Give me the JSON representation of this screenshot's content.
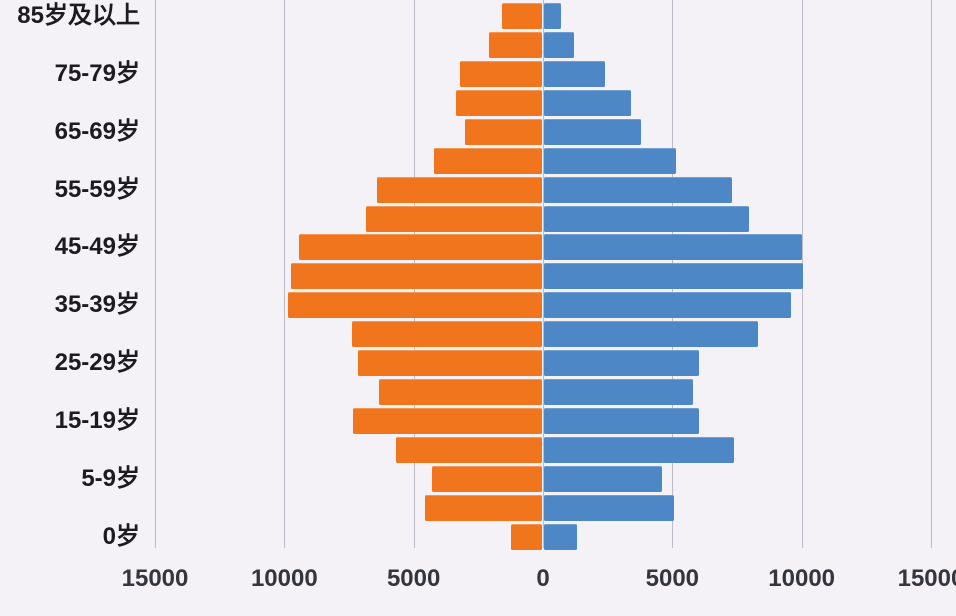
{
  "chart_data": {
    "type": "bar",
    "subtype": "population-pyramid",
    "title": "",
    "xlabel": "",
    "ylabel": "",
    "grid": true,
    "legend": "none",
    "background_color": "#f4f2f7",
    "gridline_color": "#bdbbc6",
    "categories": [
      "85岁及以上",
      "80-84岁",
      "75-79岁",
      "70-74岁",
      "65-69岁",
      "60-64岁",
      "55-59岁",
      "50-54岁",
      "45-49岁",
      "40-44岁",
      "35-39岁",
      "30-34岁",
      "25-29岁",
      "20-24岁",
      "15-19岁",
      "10-14岁",
      "5-9岁",
      "1-4岁",
      "0岁"
    ],
    "series": [
      {
        "name": "left-orange",
        "color": "#f1751d",
        "direction": "left",
        "values": [
          1600,
          2100,
          3200,
          3350,
          3000,
          4200,
          6400,
          6850,
          9450,
          9750,
          9850,
          7400,
          7150,
          6350,
          7350,
          5700,
          4300,
          4550,
          1250
        ]
      },
      {
        "name": "right-blue",
        "color": "#4e87c6",
        "direction": "right",
        "values": [
          700,
          1200,
          2400,
          3400,
          3800,
          5150,
          7300,
          7950,
          10000,
          10050,
          9600,
          8300,
          6050,
          5800,
          6050,
          7400,
          4600,
          5050,
          1300
        ]
      }
    ],
    "y_axis": {
      "tick_labels": [
        "85岁及以上",
        "75-79岁",
        "65-69岁",
        "55-59岁",
        "45-49岁",
        "35-39岁",
        "25-29岁",
        "15-19岁",
        "5-9岁",
        "0岁"
      ],
      "labels_every_other_category": true
    },
    "x_axis": {
      "tick_values": [
        -15000,
        -10000,
        -5000,
        0,
        5000,
        10000,
        15000
      ],
      "tick_labels": [
        "15000",
        "10000",
        "5000",
        "0",
        "5000",
        "10000",
        "15000"
      ],
      "units_per_side_max": 15000,
      "rightmost_label_clipped": true
    }
  }
}
